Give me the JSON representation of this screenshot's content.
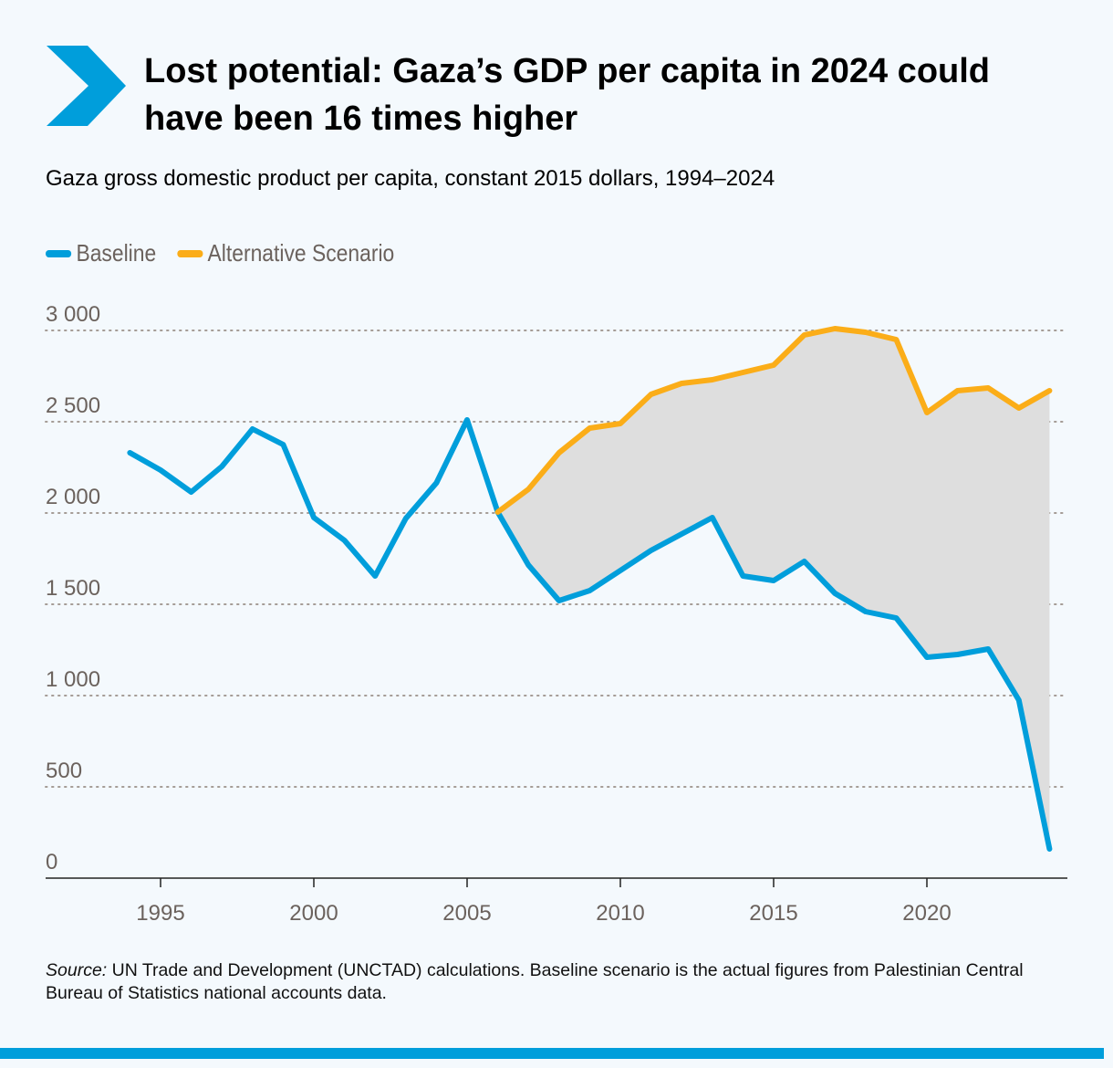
{
  "header": {
    "title": "Lost potential: Gaza’s GDP per capita in 2024 could have been 16 times higher",
    "subtitle": "Gaza gross domestic product per capita, constant 2015 dollars, 1994–2024",
    "icon": "chevron-right-icon"
  },
  "colors": {
    "baseline": "#009edb",
    "alternative": "#fbad18",
    "gap_fill": "#dedede",
    "background": "#f4f9fd"
  },
  "chart_data": {
    "type": "line",
    "title": "Gaza gross domestic product per capita, constant 2015 dollars, 1994–2024",
    "legend": {
      "placement": "top-left",
      "entries": [
        "Baseline",
        "Alternative Scenario"
      ]
    },
    "ylim": [
      0,
      3000
    ],
    "xlim": [
      1992.3,
      2024.8
    ],
    "y_ticks": [
      0,
      500,
      1000,
      1500,
      2000,
      2500,
      3000
    ],
    "y_tick_labels": [
      "0",
      "500",
      "1 000",
      "1 500",
      "2 000",
      "2 500",
      "3 000"
    ],
    "x_ticks": [
      1995,
      2000,
      2005,
      2010,
      2015,
      2020
    ],
    "x_tick_labels": [
      "1995",
      "2000",
      "2005",
      "2010",
      "2015",
      "2020"
    ],
    "grid": "horizontal dotted",
    "shaded_area": "between Alternative Scenario and Baseline, 2006–2024",
    "series": [
      {
        "name": "Baseline",
        "x": [
          1994,
          1995,
          1996,
          1997,
          1998,
          1999,
          2000,
          2001,
          2002,
          2003,
          2004,
          2005,
          2006,
          2007,
          2008,
          2009,
          2010,
          2011,
          2012,
          2013,
          2014,
          2015,
          2016,
          2017,
          2018,
          2019,
          2020,
          2021,
          2022,
          2023,
          2024
        ],
        "values": [
          2330,
          2235,
          2115,
          2255,
          2460,
          2375,
          1975,
          1850,
          1655,
          1970,
          2165,
          2510,
          2005,
          1715,
          1520,
          1575,
          1685,
          1795,
          1885,
          1975,
          1655,
          1630,
          1735,
          1560,
          1460,
          1425,
          1210,
          1225,
          1255,
          975,
          160
        ]
      },
      {
        "name": "Alternative Scenario",
        "x": [
          2006,
          2007,
          2008,
          2009,
          2010,
          2011,
          2012,
          2013,
          2014,
          2015,
          2016,
          2017,
          2018,
          2019,
          2020,
          2021,
          2022,
          2023,
          2024
        ],
        "values": [
          2005,
          2130,
          2330,
          2465,
          2490,
          2650,
          2710,
          2730,
          2770,
          2810,
          2975,
          3010,
          2990,
          2950,
          2550,
          2670,
          2685,
          2575,
          2670
        ]
      }
    ]
  },
  "footer": {
    "source_label": "Source:",
    "source_text": " UN Trade and Development (UNCTAD) calculations. Baseline scenario is the actual figures from Palestinian Central Bureau of Statistics national accounts data."
  }
}
